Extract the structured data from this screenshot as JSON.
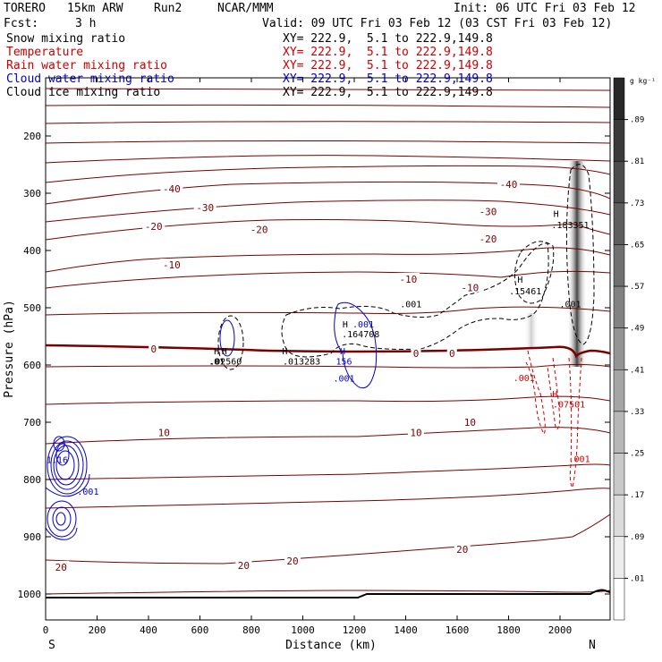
{
  "header": {
    "model": "TORERO",
    "resolution": "15km ARW",
    "run": "Run2",
    "center": "NCAR/MMM",
    "init": "Init: 06 UTC Fri 03 Feb 12",
    "fcst_label": "Fcst:",
    "fcst_value": "3 h",
    "valid": "Valid: 09 UTC Fri 03 Feb 12 (03 CST Fri 03 Feb 12)"
  },
  "legend": [
    {
      "label": "Snow mixing ratio",
      "xy": "XY= 222.9,  5.1 to 222.9,149.8",
      "color": "#000000"
    },
    {
      "label": "Temperature",
      "xy": "XY= 222.9,  5.1 to 222.9,149.8",
      "color": "#cc0000"
    },
    {
      "label": "Rain water mixing ratio",
      "xy": "XY= 222.9,  5.1 to 222.9,149.8",
      "color": "#cc0000"
    },
    {
      "label": "Cloud water mixing ratio",
      "xy": "XY= 222.9,  5.1 to 222.9,149.8",
      "color": "#0000cc"
    },
    {
      "label": "Cloud ice mixing ratio",
      "xy": "XY= 222.9,  5.1 to 222.9,149.8",
      "color": "#000000"
    }
  ],
  "chart_data": {
    "type": "contour cross-section",
    "xlabel": "Distance (km)",
    "ylabel": "Pressure (hPa)",
    "x_range": [
      0,
      2200
    ],
    "y_range": [
      1050,
      100
    ],
    "x_ticks": [
      0,
      200,
      400,
      600,
      800,
      1000,
      1200,
      1400,
      1600,
      1800,
      2000
    ],
    "y_ticks": [
      200,
      300,
      400,
      500,
      600,
      700,
      800,
      900,
      1000
    ],
    "x_end_labels": {
      "left": "S",
      "right": "N"
    },
    "colorbar": {
      "unit": "g kg⁻¹",
      "levels": [
        ".89",
        ".81",
        ".73",
        ".65",
        ".57",
        ".49",
        ".41",
        ".33",
        ".25",
        ".17",
        ".09",
        ".01"
      ]
    },
    "temperature_labels": [
      {
        "text": "-40",
        "x": 490,
        "p": 292
      },
      {
        "text": "-40",
        "x": 1800,
        "p": 284
      },
      {
        "text": "-30",
        "x": 620,
        "p": 325
      },
      {
        "text": "-30",
        "x": 1720,
        "p": 332
      },
      {
        "text": "-20",
        "x": 420,
        "p": 358
      },
      {
        "text": "-20",
        "x": 830,
        "p": 363
      },
      {
        "text": "-20",
        "x": 1720,
        "p": 380
      },
      {
        "text": "-10",
        "x": 490,
        "p": 425
      },
      {
        "text": "-10",
        "x": 1410,
        "p": 450
      },
      {
        "text": "-10",
        "x": 1650,
        "p": 465
      },
      {
        "text": "0",
        "x": 420,
        "p": 572
      },
      {
        "text": "0",
        "x": 1440,
        "p": 580
      },
      {
        "text": "0",
        "x": 1580,
        "p": 580
      },
      {
        "text": "10",
        "x": 460,
        "p": 718
      },
      {
        "text": "10",
        "x": 1440,
        "p": 718
      },
      {
        "text": "10",
        "x": 1650,
        "p": 700
      },
      {
        "text": "20",
        "x": 60,
        "p": 953
      },
      {
        "text": "20",
        "x": 770,
        "p": 950
      },
      {
        "text": "20",
        "x": 960,
        "p": 942
      },
      {
        "text": "20",
        "x": 1620,
        "p": 922
      }
    ],
    "max_labels": [
      {
        "text": "H",
        "x": 665,
        "p": 575,
        "color": "#000000"
      },
      {
        "text": "H",
        "x": 695,
        "p": 575,
        "color": "#000000"
      },
      {
        "text": ".01",
        "x": 665,
        "p": 593,
        "color": "#000000"
      },
      {
        "text": ".02560",
        "x": 700,
        "p": 593,
        "color": "#000000"
      },
      {
        "text": "H",
        "x": 930,
        "p": 575,
        "color": "#000000"
      },
      {
        "text": ".013283",
        "x": 995,
        "p": 593,
        "color": "#000000"
      },
      {
        "text": "H",
        "x": 1155,
        "p": 575,
        "color": "#0000cc"
      },
      {
        "text": "156",
        "x": 1160,
        "p": 593,
        "color": "#0000cc"
      },
      {
        "text": "H",
        "x": 1165,
        "p": 528,
        "color": "#000000"
      },
      {
        "text": ".001",
        "x": 1235,
        "p": 528,
        "color": "#0000cc"
      },
      {
        "text": ".164708",
        "x": 1225,
        "p": 545,
        "color": "#000000"
      },
      {
        "text": ".001",
        "x": 1160,
        "p": 623,
        "color": "#0000cc"
      },
      {
        "text": ".001",
        "x": 1420,
        "p": 493,
        "color": "#000000"
      },
      {
        "text": "H",
        "x": 1845,
        "p": 450,
        "color": "#000000"
      },
      {
        "text": ".15461",
        "x": 1865,
        "p": 470,
        "color": "#000000"
      },
      {
        "text": "H",
        "x": 1985,
        "p": 335,
        "color": "#000000"
      },
      {
        "text": ".183351",
        "x": 2040,
        "p": 355,
        "color": "#000000"
      },
      {
        "text": ".001",
        "x": 2040,
        "p": 493,
        "color": "#000000"
      },
      {
        "text": ".001",
        "x": 1860,
        "p": 622,
        "color": "#cc0000"
      },
      {
        "text": "H",
        "x": 1980,
        "p": 650,
        "color": "#cc0000"
      },
      {
        "text": ".07501",
        "x": 2035,
        "p": 668,
        "color": "#cc0000"
      },
      {
        "text": ".001",
        "x": 2075,
        "p": 763,
        "color": "#cc0000"
      },
      {
        "text": "1.16",
        "x": 45,
        "p": 765,
        "color": "#0000cc"
      },
      {
        "text": ".001",
        "x": 165,
        "p": 820,
        "color": "#0000cc"
      }
    ]
  }
}
